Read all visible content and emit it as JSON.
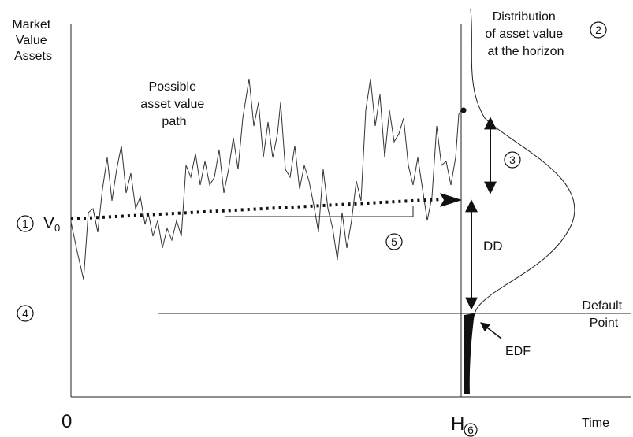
{
  "axes": {
    "y_label_lines": [
      "Market",
      "Value",
      "Assets"
    ],
    "origin_label": "0",
    "horizon_label": "H",
    "time_label": "Time"
  },
  "labels": {
    "distribution_lines": [
      "Distribution",
      "of asset value",
      "at the horizon"
    ],
    "path_lines": [
      "Possible",
      "asset value",
      "path"
    ],
    "v0_label": "V",
    "v0_subscript": "0",
    "dd_label": "DD",
    "default_point_lines": [
      "Default",
      "Point"
    ],
    "edf_label": "EDF"
  },
  "markers": {
    "m1": "1",
    "m2": "2",
    "m3": "3",
    "m4": "4",
    "m5": "5",
    "m6": "6"
  },
  "colors": {
    "ink": "#111111",
    "background": "#ffffff"
  }
}
